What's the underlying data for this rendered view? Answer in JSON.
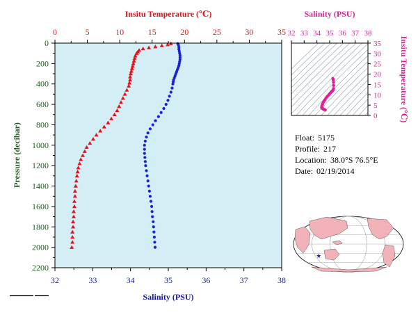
{
  "colors": {
    "temperature": "#e8101a",
    "salinity": "#1a22d8",
    "ts_plot": "#e0209a",
    "pressure_axis": "#1f5d1f",
    "temp_title": "#e8101a",
    "sal_title": "#1a1aa0",
    "plot_bg": "#d4eef6",
    "land": "#f2b3b8",
    "ocean": "#ffffff"
  },
  "meta": {
    "float_label": "Float:",
    "float_value": "5175",
    "profile_label": "Profile:",
    "profile_value": "217",
    "location_label": "Location:",
    "location_value": "38.0°S  76.5°E",
    "date_label": "Date:",
    "date_value": "02/19/2014"
  },
  "chart_data": [
    {
      "type": "scatter",
      "name": "profile",
      "top_axis_title": "Insitu Temperature (℃)",
      "top_axis_range": [
        0,
        35
      ],
      "top_ticks": [
        "0",
        "5",
        "10",
        "15",
        "20",
        "25",
        "30",
        "35"
      ],
      "bottom_axis_title": "Salinity (PSU)",
      "bottom_axis_range": [
        32,
        38
      ],
      "bottom_ticks": [
        "32",
        "33",
        "34",
        "35",
        "36",
        "37",
        "38"
      ],
      "ylabel": "Pressure (decibar)",
      "ylim": [
        2200,
        0
      ],
      "y_ticks": [
        "0",
        "200",
        "400",
        "600",
        "800",
        "1000",
        "1200",
        "1400",
        "1600",
        "1800",
        "2000",
        "2200"
      ],
      "grid": false,
      "series": [
        {
          "marker": "triangle",
          "axis": "top",
          "points": [
            [
              17.9,
              5
            ],
            [
              17.4,
              15
            ],
            [
              16.5,
              25
            ],
            [
              15.5,
              35
            ],
            [
              14.5,
              45
            ],
            [
              13.6,
              55
            ],
            [
              13.0,
              70
            ],
            [
              12.8,
              85
            ],
            [
              12.6,
              100
            ],
            [
              12.4,
              125
            ],
            [
              12.3,
              150
            ],
            [
              12.2,
              175
            ],
            [
              12.1,
              200
            ],
            [
              12.0,
              225
            ],
            [
              11.9,
              250
            ],
            [
              11.8,
              275
            ],
            [
              11.7,
              300
            ],
            [
              11.6,
              330
            ],
            [
              11.6,
              360
            ],
            [
              11.5,
              390
            ],
            [
              11.4,
              420
            ],
            [
              11.1,
              460
            ],
            [
              10.8,
              500
            ],
            [
              10.5,
              540
            ],
            [
              10.2,
              580
            ],
            [
              9.9,
              620
            ],
            [
              9.6,
              660
            ],
            [
              9.2,
              700
            ],
            [
              8.7,
              740
            ],
            [
              8.2,
              780
            ],
            [
              7.6,
              820
            ],
            [
              7.0,
              860
            ],
            [
              6.4,
              900
            ],
            [
              5.9,
              940
            ],
            [
              5.4,
              980
            ],
            [
              4.9,
              1020
            ],
            [
              4.6,
              1060
            ],
            [
              4.3,
              1100
            ],
            [
              4.0,
              1140
            ],
            [
              3.8,
              1180
            ],
            [
              3.6,
              1220
            ],
            [
              3.5,
              1260
            ],
            [
              3.4,
              1300
            ],
            [
              3.3,
              1350
            ],
            [
              3.2,
              1400
            ],
            [
              3.1,
              1450
            ],
            [
              3.1,
              1500
            ],
            [
              3.0,
              1550
            ],
            [
              3.0,
              1600
            ],
            [
              2.9,
              1650
            ],
            [
              2.9,
              1700
            ],
            [
              2.8,
              1750
            ],
            [
              2.8,
              1800
            ],
            [
              2.7,
              1850
            ],
            [
              2.7,
              1900
            ],
            [
              2.7,
              1950
            ],
            [
              2.6,
              2000
            ]
          ]
        },
        {
          "marker": "circle",
          "axis": "bottom",
          "points": [
            [
              35.25,
              5
            ],
            [
              35.27,
              20
            ],
            [
              35.28,
              40
            ],
            [
              35.28,
              60
            ],
            [
              35.29,
              80
            ],
            [
              35.3,
              100
            ],
            [
              35.31,
              120
            ],
            [
              35.31,
              140
            ],
            [
              35.31,
              160
            ],
            [
              35.3,
              180
            ],
            [
              35.29,
              200
            ],
            [
              35.28,
              220
            ],
            [
              35.26,
              240
            ],
            [
              35.24,
              260
            ],
            [
              35.22,
              280
            ],
            [
              35.2,
              300
            ],
            [
              35.18,
              320
            ],
            [
              35.16,
              340
            ],
            [
              35.14,
              360
            ],
            [
              35.13,
              380
            ],
            [
              35.12,
              400
            ],
            [
              35.1,
              440
            ],
            [
              35.07,
              480
            ],
            [
              35.03,
              520
            ],
            [
              34.99,
              560
            ],
            [
              34.94,
              600
            ],
            [
              34.88,
              640
            ],
            [
              34.81,
              680
            ],
            [
              34.74,
              720
            ],
            [
              34.66,
              760
            ],
            [
              34.59,
              800
            ],
            [
              34.52,
              840
            ],
            [
              34.46,
              880
            ],
            [
              34.42,
              920
            ],
            [
              34.39,
              960
            ],
            [
              34.37,
              1000
            ],
            [
              34.37,
              1040
            ],
            [
              34.37,
              1080
            ],
            [
              34.38,
              1120
            ],
            [
              34.39,
              1160
            ],
            [
              34.4,
              1200
            ],
            [
              34.42,
              1250
            ],
            [
              34.44,
              1300
            ],
            [
              34.46,
              1350
            ],
            [
              34.48,
              1400
            ],
            [
              34.5,
              1450
            ],
            [
              34.52,
              1500
            ],
            [
              34.54,
              1550
            ],
            [
              34.56,
              1600
            ],
            [
              34.57,
              1650
            ],
            [
              34.58,
              1700
            ],
            [
              34.6,
              1750
            ],
            [
              34.61,
              1800
            ],
            [
              34.62,
              1850
            ],
            [
              34.63,
              1900
            ],
            [
              34.64,
              1950
            ],
            [
              34.65,
              2000
            ]
          ]
        }
      ]
    },
    {
      "type": "scatter",
      "name": "ts",
      "xlabel": "Salinity (PSU)",
      "x_range": [
        32,
        38
      ],
      "x_ticks": [
        "32",
        "33",
        "34",
        "35",
        "36",
        "37",
        "38"
      ],
      "ylabel": "Insitu Temperature (℃)",
      "y_range": [
        0,
        35
      ],
      "y_ticks": [
        "0",
        "5",
        "10",
        "15",
        "20",
        "25",
        "30",
        "35"
      ],
      "grid": false,
      "density_contours": true,
      "points": [
        [
          35.25,
          17.9
        ],
        [
          35.28,
          17.2
        ],
        [
          35.3,
          16.0
        ],
        [
          35.31,
          14.5
        ],
        [
          35.3,
          13.0
        ],
        [
          35.28,
          12.4
        ],
        [
          35.24,
          12.1
        ],
        [
          35.2,
          11.8
        ],
        [
          35.16,
          11.6
        ],
        [
          35.12,
          11.4
        ],
        [
          35.07,
          11.0
        ],
        [
          35.0,
          10.5
        ],
        [
          34.94,
          10.0
        ],
        [
          34.86,
          9.5
        ],
        [
          34.78,
          9.0
        ],
        [
          34.7,
          8.3
        ],
        [
          34.62,
          7.5
        ],
        [
          34.55,
          6.8
        ],
        [
          34.49,
          6.2
        ],
        [
          34.44,
          5.5
        ],
        [
          34.4,
          4.9
        ],
        [
          34.38,
          4.4
        ],
        [
          34.37,
          4.0
        ],
        [
          34.38,
          3.7
        ],
        [
          34.4,
          3.5
        ],
        [
          34.44,
          3.3
        ],
        [
          34.48,
          3.2
        ],
        [
          34.52,
          3.0
        ],
        [
          34.56,
          2.9
        ],
        [
          34.6,
          2.8
        ],
        [
          34.63,
          2.7
        ],
        [
          34.65,
          2.6
        ]
      ]
    },
    {
      "type": "map",
      "name": "location",
      "projection": "robinson",
      "marker": "star",
      "point": {
        "lat": -38.0,
        "lon": 76.5
      }
    }
  ]
}
